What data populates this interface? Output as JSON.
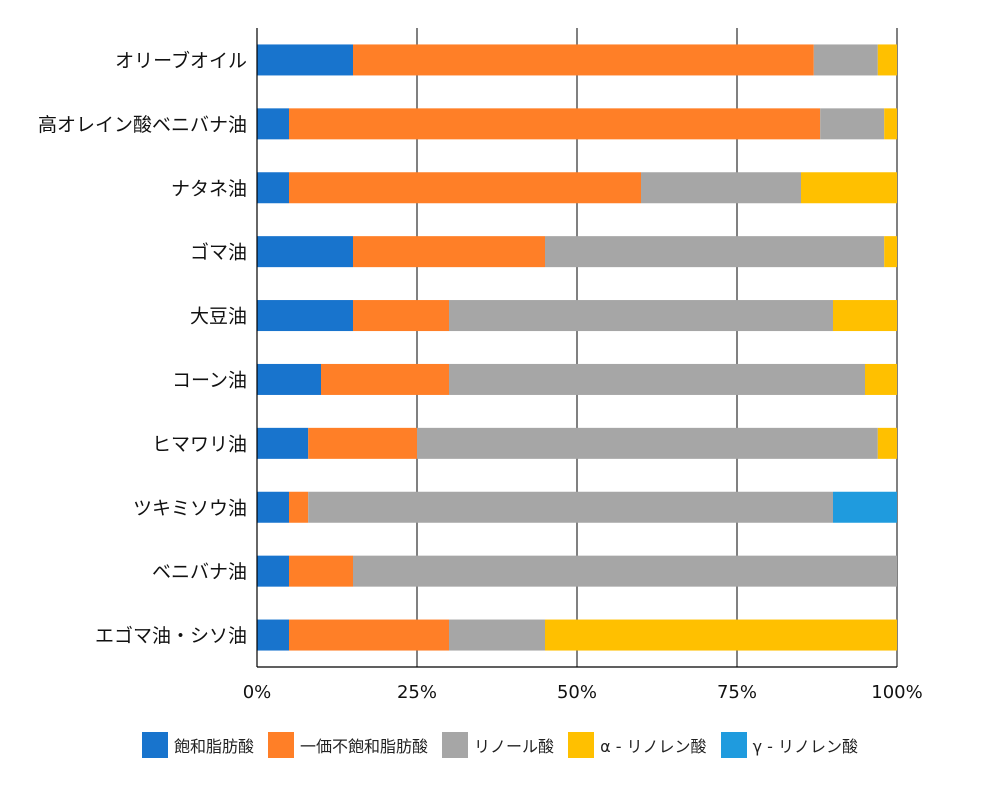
{
  "chart_data": {
    "type": "bar",
    "orientation": "horizontal",
    "stacked": true,
    "percent": true,
    "title": "",
    "xlabel": "",
    "ylabel": "",
    "xlim": [
      0,
      100
    ],
    "x_ticks": [
      "0%",
      "25%",
      "50%",
      "75%",
      "100%"
    ],
    "grid": "vertical",
    "legend_position": "bottom",
    "categories": [
      "オリーブオイル",
      "高オレイン酸ベニバナ油",
      "ナタネ油",
      "ゴマ油",
      "大豆油",
      "コーン油",
      "ヒマワリ油",
      "ツキミソウ油",
      "ベニバナ油",
      "エゴマ油・シソ油"
    ],
    "series": [
      {
        "name": "飽和脂肪酸",
        "color": "#1874cd",
        "values": [
          15,
          5,
          5,
          15,
          15,
          10,
          8,
          5,
          5,
          5
        ]
      },
      {
        "name": "一価不飽和脂肪酸",
        "color": "#ff7f27",
        "values": [
          72,
          83,
          55,
          30,
          15,
          20,
          17,
          3,
          10,
          25
        ]
      },
      {
        "name": "リノール酸",
        "color": "#a6a6a6",
        "values": [
          10,
          10,
          25,
          53,
          60,
          65,
          72,
          82,
          85,
          15
        ]
      },
      {
        "name": "α - リノレン酸",
        "color": "#ffc000",
        "values": [
          3,
          2,
          15,
          2,
          10,
          5,
          3,
          0,
          0,
          55
        ]
      },
      {
        "name": "γ - リノレン酸",
        "color": "#1f9bde",
        "values": [
          0,
          0,
          0,
          0,
          0,
          0,
          0,
          10,
          0,
          0
        ]
      }
    ]
  }
}
